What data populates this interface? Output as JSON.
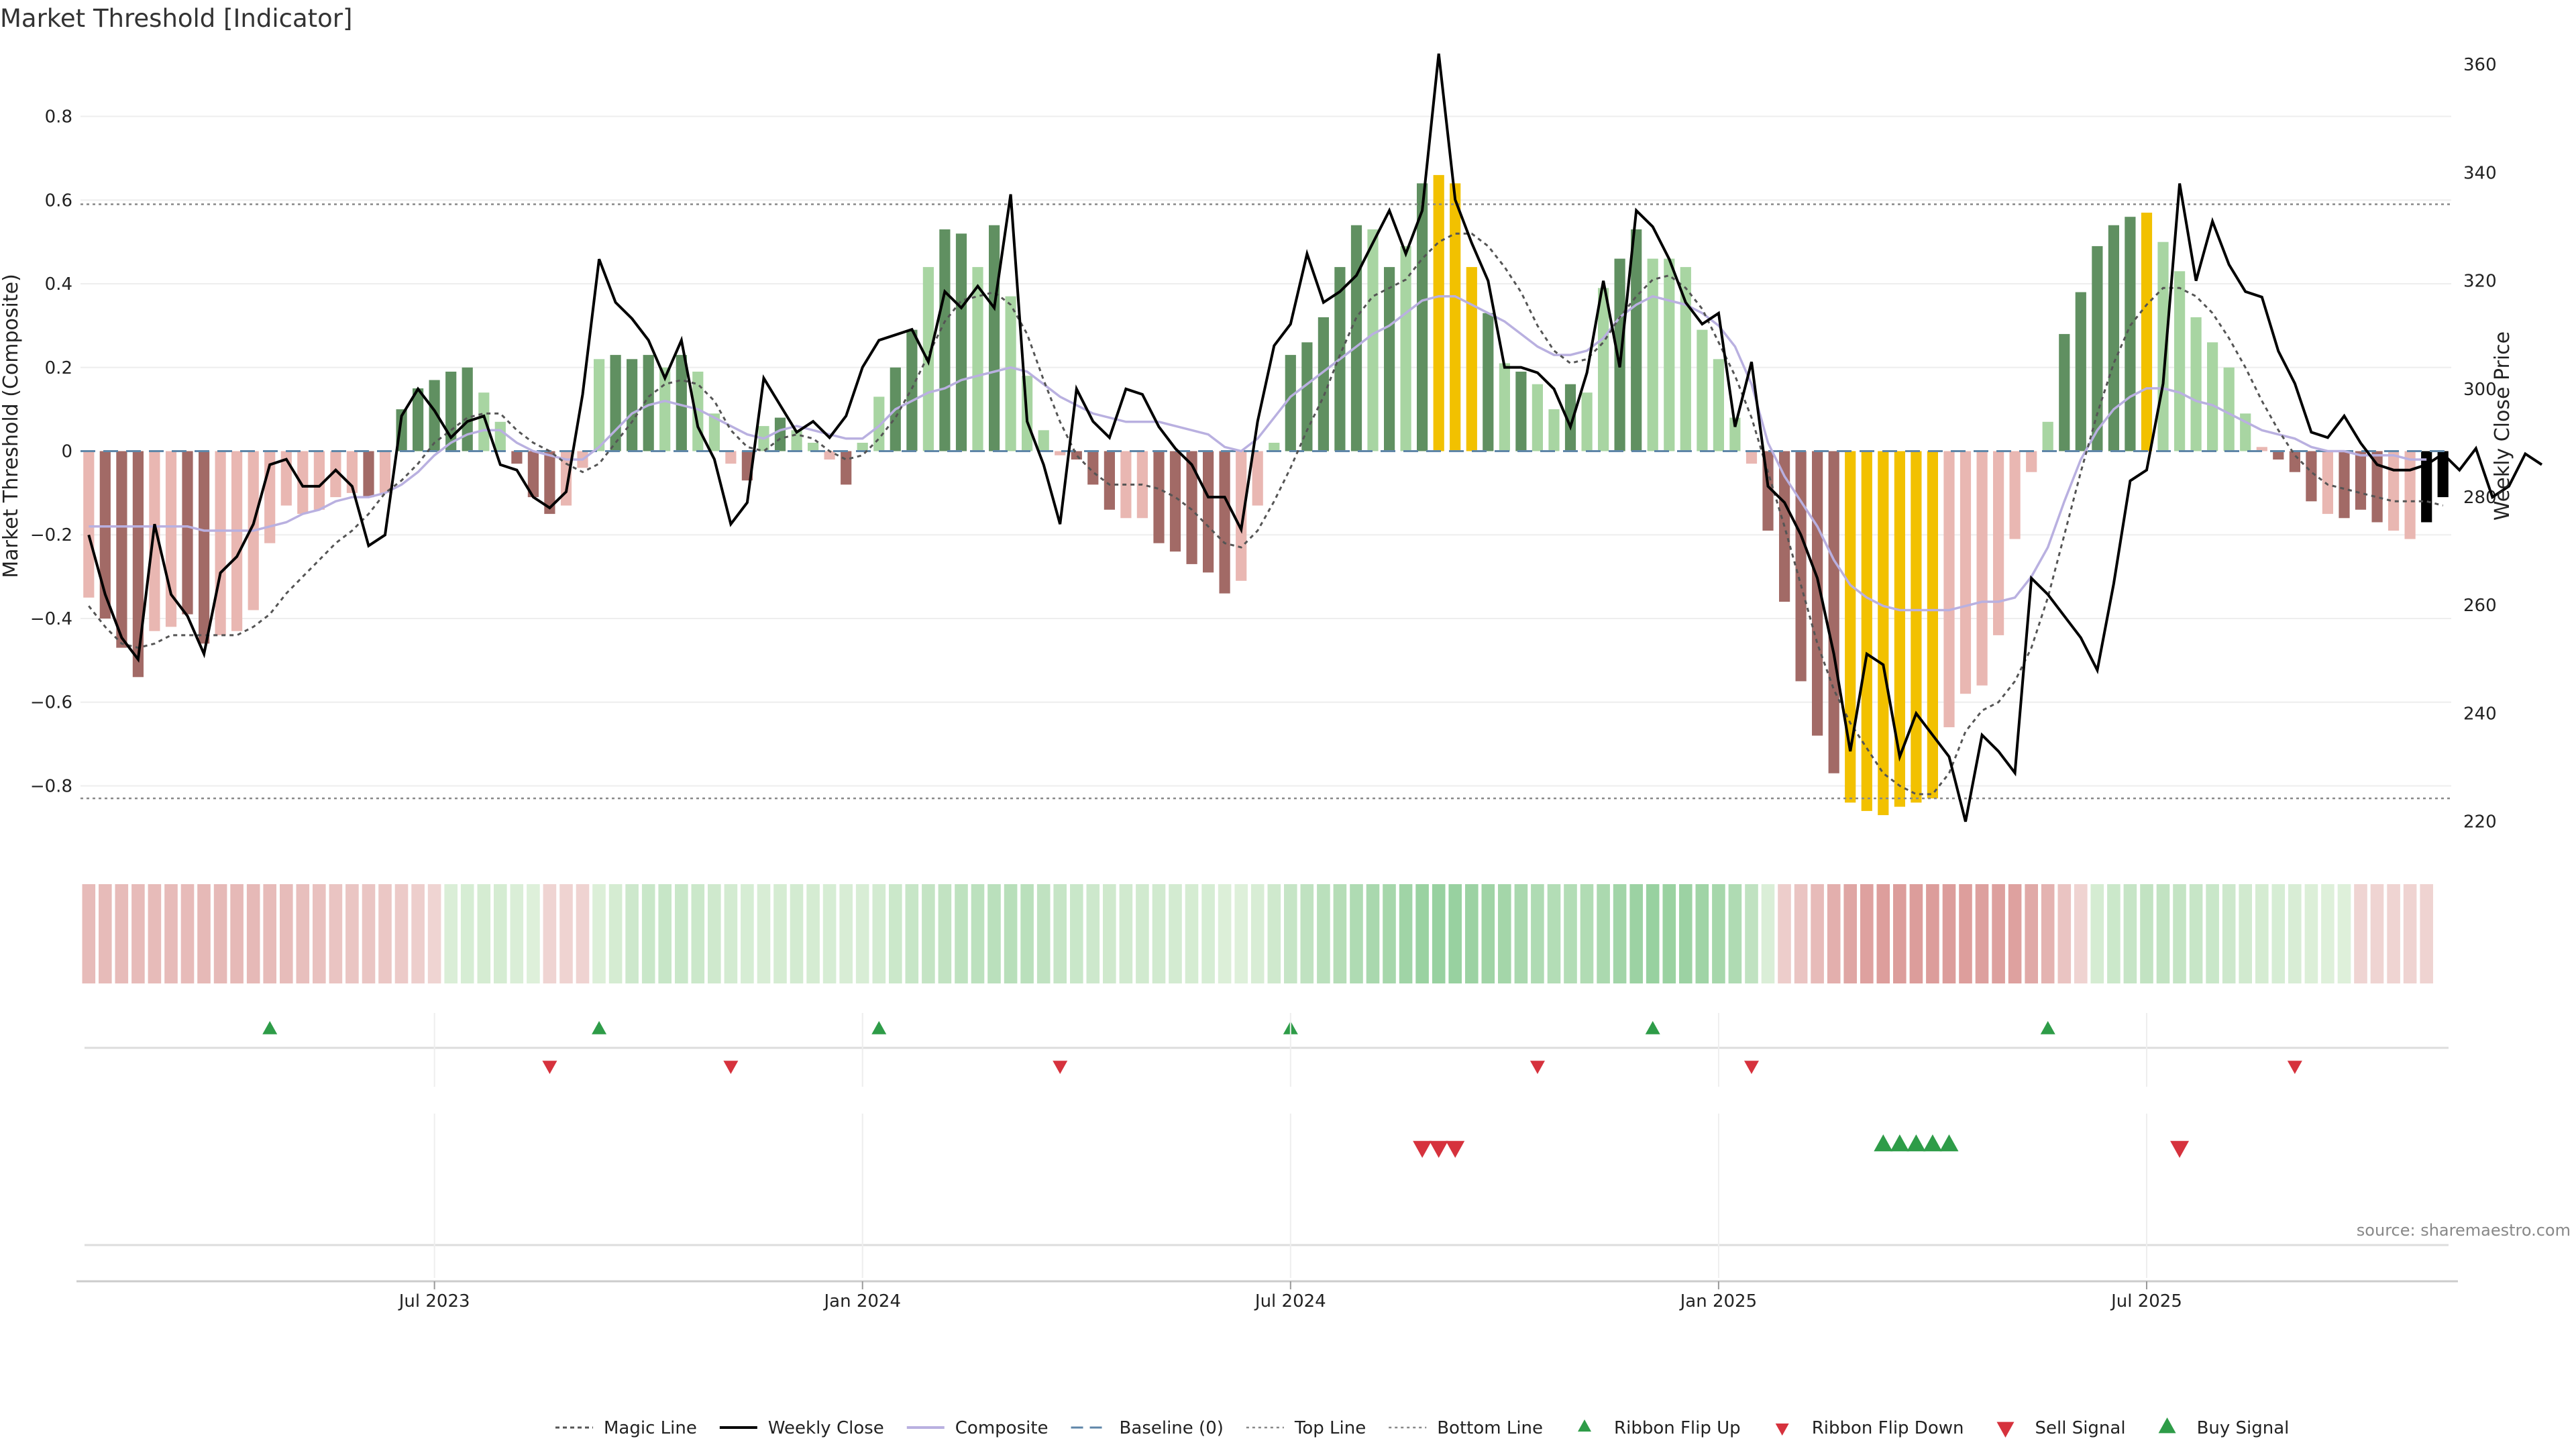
{
  "title": "Market Threshold [Indicator]",
  "source": "source: sharemaestro.com",
  "chart_data": {
    "type": "bar",
    "title": "Market Threshold [Indicator]",
    "ylabel": "Market Threshold (Composite)",
    "y2label": "Weekly Close Price",
    "ylim": [
      -0.95,
      0.95
    ],
    "y2lim": [
      215,
      362
    ],
    "yticks": [
      -0.8,
      -0.6,
      -0.4,
      -0.2,
      0,
      0.2,
      0.4,
      0.6,
      0.8
    ],
    "ytick_labels": [
      "−0.8",
      "−0.6",
      "−0.4",
      "−0.2",
      "0",
      "0.2",
      "0.4",
      "0.6",
      "0.8"
    ],
    "y2ticks": [
      220,
      240,
      260,
      280,
      300,
      320,
      340,
      360
    ],
    "y2tick_labels": [
      "220",
      "240",
      "260",
      "280",
      "300",
      "320",
      "340",
      "360"
    ],
    "xticks": [
      {
        "week": 21,
        "label": "Jul 2023"
      },
      {
        "week": 47,
        "label": "Jan 2024"
      },
      {
        "week": 73,
        "label": "Jul 2024"
      },
      {
        "week": 99,
        "label": "Jan 2025"
      },
      {
        "week": 125,
        "label": "Jul 2025"
      }
    ],
    "top_line": 0.59,
    "bottom_line": -0.83,
    "baseline": 0,
    "composite": [
      -0.35,
      -0.4,
      -0.47,
      -0.54,
      -0.43,
      -0.42,
      -0.39,
      -0.46,
      -0.44,
      -0.43,
      -0.38,
      -0.22,
      -0.13,
      -0.15,
      -0.14,
      -0.11,
      -0.1,
      -0.11,
      -0.1,
      0.1,
      0.15,
      0.17,
      0.19,
      0.2,
      0.14,
      0.07,
      -0.03,
      -0.11,
      -0.15,
      -0.13,
      -0.04,
      0.22,
      0.23,
      0.22,
      0.23,
      0.2,
      0.23,
      0.19,
      0.09,
      -0.03,
      -0.07,
      0.06,
      0.08,
      0.05,
      0.02,
      -0.02,
      -0.08,
      0.02,
      0.13,
      0.2,
      0.29,
      0.44,
      0.53,
      0.52,
      0.44,
      0.54,
      0.37,
      0.18,
      0.05,
      -0.01,
      -0.02,
      -0.08,
      -0.14,
      -0.16,
      -0.16,
      -0.22,
      -0.24,
      -0.27,
      -0.29,
      -0.34,
      -0.31,
      -0.13,
      0.02,
      0.23,
      0.26,
      0.32,
      0.44,
      0.54,
      0.53,
      0.44,
      0.49,
      0.64,
      0.66,
      0.64,
      0.44,
      0.33,
      0.21,
      0.19,
      0.16,
      0.1,
      0.16,
      0.14,
      0.39,
      0.46,
      0.53,
      0.46,
      0.46,
      0.44,
      0.29,
      0.22,
      0.08,
      -0.03,
      -0.19,
      -0.36,
      -0.55,
      -0.68,
      -0.77,
      -0.84,
      -0.86,
      -0.87,
      -0.85,
      -0.84,
      -0.83,
      -0.66,
      -0.58,
      -0.56,
      -0.44,
      -0.21,
      -0.05,
      0.07,
      0.28,
      0.38,
      0.49,
      0.54,
      0.56,
      0.57,
      0.5,
      0.43,
      0.32,
      0.26,
      0.2,
      0.09,
      0.01,
      -0.02,
      -0.05,
      -0.12,
      -0.15,
      -0.16,
      -0.14,
      -0.17,
      -0.19,
      -0.21,
      -0.17,
      -0.11
    ],
    "bar_colors": [
      "#e9b7b2",
      "#a26a66",
      "#a26a66",
      "#a26a66",
      "#e9b7b2",
      "#e9b7b2",
      "#a26a66",
      "#a26a66",
      "#e9b7b2",
      "#e9b7b2",
      "#e9b7b2",
      "#e9b7b2",
      "#e9b7b2",
      "#e9b7b2",
      "#e9b7b2",
      "#e9b7b2",
      "#e9b7b2",
      "#a26a66",
      "#e9b7b2",
      "#609061",
      "#609061",
      "#609061",
      "#609061",
      "#609061",
      "#a8d5a2",
      "#a8d5a2",
      "#a26a66",
      "#a26a66",
      "#a26a66",
      "#e9b7b2",
      "#e9b7b2",
      "#a8d5a2",
      "#609061",
      "#609061",
      "#609061",
      "#a8d5a2",
      "#609061",
      "#a8d5a2",
      "#a8d5a2",
      "#e9b7b2",
      "#a26a66",
      "#a8d5a2",
      "#609061",
      "#a8d5a2",
      "#a8d5a2",
      "#e9b7b2",
      "#a26a66",
      "#a8d5a2",
      "#a8d5a2",
      "#609061",
      "#609061",
      "#a8d5a2",
      "#609061",
      "#609061",
      "#a8d5a2",
      "#609061",
      "#a8d5a2",
      "#a8d5a2",
      "#a8d5a2",
      "#e9b7b2",
      "#a26a66",
      "#a26a66",
      "#a26a66",
      "#e9b7b2",
      "#e9b7b2",
      "#a26a66",
      "#a26a66",
      "#a26a66",
      "#a26a66",
      "#a26a66",
      "#e9b7b2",
      "#e9b7b2",
      "#a8d5a2",
      "#609061",
      "#609061",
      "#609061",
      "#609061",
      "#609061",
      "#a8d5a2",
      "#609061",
      "#a8d5a2",
      "#609061",
      "#f2c100",
      "#f2c100",
      "#f2c100",
      "#609061",
      "#a8d5a2",
      "#609061",
      "#a8d5a2",
      "#a8d5a2",
      "#609061",
      "#a8d5a2",
      "#a8d5a2",
      "#609061",
      "#609061",
      "#a8d5a2",
      "#a8d5a2",
      "#a8d5a2",
      "#a8d5a2",
      "#a8d5a2",
      "#a8d5a2",
      "#e9b7b2",
      "#a26a66",
      "#a26a66",
      "#a26a66",
      "#a26a66",
      "#a26a66",
      "#f2c100",
      "#f2c100",
      "#f2c100",
      "#f2c100",
      "#f2c100",
      "#f2c100",
      "#e9b7b2",
      "#e9b7b2",
      "#e9b7b2",
      "#e9b7b2",
      "#e9b7b2",
      "#e9b7b2",
      "#a8d5a2",
      "#609061",
      "#609061",
      "#609061",
      "#609061",
      "#609061",
      "#f2c100",
      "#a8d5a2",
      "#a8d5a2",
      "#a8d5a2",
      "#a8d5a2",
      "#a8d5a2",
      "#a8d5a2",
      "#e9b7b2",
      "#a26a66",
      "#a26a66",
      "#a26a66",
      "#e9b7b2",
      "#a26a66",
      "#a26a66",
      "#a26a66",
      "#e9b7b2",
      "#e9b7b2"
    ],
    "magic_line": [
      -0.37,
      -0.42,
      -0.46,
      -0.47,
      -0.46,
      -0.44,
      -0.44,
      -0.44,
      -0.44,
      -0.44,
      -0.42,
      -0.39,
      -0.34,
      -0.3,
      -0.26,
      -0.22,
      -0.19,
      -0.15,
      -0.1,
      -0.07,
      -0.03,
      0.02,
      0.05,
      0.08,
      0.09,
      0.09,
      0.05,
      0.02,
      0.0,
      -0.03,
      -0.05,
      -0.03,
      0.02,
      0.07,
      0.13,
      0.16,
      0.17,
      0.16,
      0.12,
      0.05,
      0.01,
      0.0,
      0.03,
      0.04,
      0.03,
      0.0,
      -0.02,
      -0.01,
      0.03,
      0.08,
      0.15,
      0.23,
      0.31,
      0.36,
      0.37,
      0.38,
      0.35,
      0.28,
      0.17,
      0.07,
      -0.01,
      -0.05,
      -0.08,
      -0.08,
      -0.08,
      -0.09,
      -0.11,
      -0.14,
      -0.18,
      -0.22,
      -0.23,
      -0.19,
      -0.12,
      -0.04,
      0.05,
      0.13,
      0.23,
      0.32,
      0.37,
      0.39,
      0.41,
      0.46,
      0.5,
      0.52,
      0.52,
      0.49,
      0.44,
      0.38,
      0.3,
      0.24,
      0.21,
      0.22,
      0.26,
      0.32,
      0.37,
      0.41,
      0.42,
      0.39,
      0.34,
      0.26,
      0.18,
      0.08,
      -0.05,
      -0.18,
      -0.32,
      -0.46,
      -0.57,
      -0.65,
      -0.71,
      -0.77,
      -0.8,
      -0.82,
      -0.82,
      -0.77,
      -0.67,
      -0.62,
      -0.6,
      -0.55,
      -0.47,
      -0.35,
      -0.2,
      -0.05,
      0.09,
      0.21,
      0.3,
      0.35,
      0.39,
      0.39,
      0.37,
      0.33,
      0.27,
      0.2,
      0.12,
      0.05,
      -0.01,
      -0.05,
      -0.08,
      -0.09,
      -0.1,
      -0.11,
      -0.12,
      -0.12,
      -0.12,
      -0.13
    ],
    "composite_line": [
      -0.18,
      -0.18,
      -0.18,
      -0.18,
      -0.18,
      -0.18,
      -0.18,
      -0.19,
      -0.19,
      -0.19,
      -0.19,
      -0.18,
      -0.17,
      -0.15,
      -0.14,
      -0.12,
      -0.11,
      -0.11,
      -0.1,
      -0.08,
      -0.05,
      -0.01,
      0.02,
      0.04,
      0.05,
      0.05,
      0.02,
      0.0,
      -0.01,
      -0.02,
      -0.02,
      0.01,
      0.05,
      0.09,
      0.11,
      0.12,
      0.11,
      0.1,
      0.08,
      0.06,
      0.04,
      0.03,
      0.05,
      0.06,
      0.05,
      0.04,
      0.03,
      0.03,
      0.06,
      0.1,
      0.12,
      0.14,
      0.15,
      0.17,
      0.18,
      0.19,
      0.2,
      0.19,
      0.16,
      0.13,
      0.11,
      0.09,
      0.08,
      0.07,
      0.07,
      0.07,
      0.06,
      0.05,
      0.04,
      0.01,
      0.0,
      0.03,
      0.08,
      0.13,
      0.16,
      0.19,
      0.22,
      0.25,
      0.28,
      0.3,
      0.33,
      0.36,
      0.37,
      0.37,
      0.35,
      0.33,
      0.31,
      0.28,
      0.25,
      0.23,
      0.23,
      0.24,
      0.27,
      0.32,
      0.35,
      0.37,
      0.36,
      0.35,
      0.33,
      0.3,
      0.25,
      0.16,
      0.02,
      -0.06,
      -0.12,
      -0.18,
      -0.26,
      -0.32,
      -0.35,
      -0.37,
      -0.38,
      -0.38,
      -0.38,
      -0.38,
      -0.37,
      -0.36,
      -0.36,
      -0.35,
      -0.3,
      -0.23,
      -0.12,
      -0.02,
      0.05,
      0.1,
      0.13,
      0.15,
      0.15,
      0.14,
      0.12,
      0.11,
      0.09,
      0.07,
      0.05,
      0.04,
      0.03,
      0.01,
      0.0,
      0.0,
      -0.01,
      -0.01,
      -0.01,
      -0.02,
      -0.02
    ],
    "weekly_close": [
      273,
      262,
      254,
      250,
      275,
      262,
      258,
      251,
      266,
      269,
      275,
      286,
      287,
      282,
      282,
      285,
      282,
      271,
      273,
      295,
      300,
      296,
      291,
      294,
      295,
      286,
      285,
      280,
      278,
      281,
      299,
      324,
      316,
      313,
      309,
      302,
      309,
      293,
      287,
      275,
      279,
      302,
      297,
      292,
      294,
      291,
      295,
      304,
      309,
      310,
      311,
      305,
      318,
      315,
      319,
      315,
      336,
      294,
      286,
      275,
      300,
      294,
      291,
      300,
      299,
      293,
      289,
      286,
      280,
      280,
      274,
      294,
      308,
      312,
      325,
      316,
      318,
      321,
      327,
      333,
      325,
      333,
      362,
      335,
      327,
      320,
      304,
      304,
      303,
      300,
      293,
      303,
      320,
      304,
      333,
      330,
      324,
      316,
      312,
      314,
      293,
      305,
      282,
      279,
      273,
      265,
      251,
      233,
      251,
      249,
      232,
      240,
      236,
      232,
      220,
      236,
      233,
      229,
      265,
      262,
      258,
      254,
      248,
      264,
      283,
      285,
      301,
      338,
      320,
      331,
      323,
      318,
      317,
      307,
      301,
      292,
      291,
      295,
      290,
      286,
      285,
      285,
      286,
      288,
      285,
      289,
      280,
      282,
      288,
      286
    ],
    "signals": {
      "ribbon_flip_up": [
        11,
        31,
        48,
        73,
        95,
        119
      ],
      "ribbon_flip_down": [
        28,
        39,
        59,
        88,
        101,
        134
      ],
      "sell_signal": [
        81,
        82,
        83,
        127
      ],
      "buy_signal": [
        109,
        110,
        111,
        112,
        113
      ]
    },
    "legend": [
      {
        "key": "magic",
        "label": "Magic Line"
      },
      {
        "key": "close",
        "label": "Weekly Close"
      },
      {
        "key": "composite",
        "label": "Composite"
      },
      {
        "key": "baseline",
        "label": "Baseline (0)"
      },
      {
        "key": "top",
        "label": "Top Line"
      },
      {
        "key": "bottom",
        "label": "Bottom Line"
      },
      {
        "key": "flipup",
        "label": "Ribbon Flip Up"
      },
      {
        "key": "flipdown",
        "label": "Ribbon Flip Down"
      },
      {
        "key": "sell",
        "label": "Sell Signal"
      },
      {
        "key": "buy",
        "label": "Buy Signal"
      }
    ]
  },
  "colors": {
    "strong_red": "#a26a66",
    "light_red": "#e9b7b2",
    "strong_green": "#609061",
    "light_green": "#a8d5a2",
    "extreme": "#f2c100",
    "composite_line": "#b9b0e0",
    "buy": "#2e9c48",
    "sell": "#d6323d"
  }
}
